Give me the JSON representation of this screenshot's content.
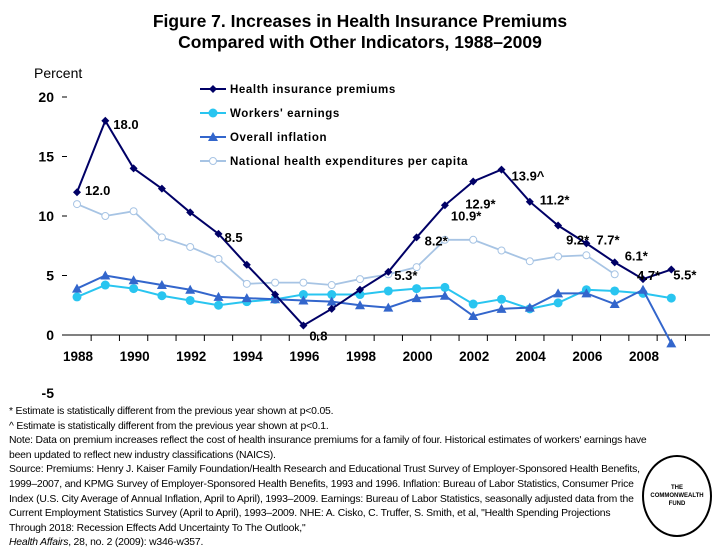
{
  "title_line1": "Figure 7. Increases in Health Insurance Premiums",
  "title_line2": "Compared with Other Indicators, 1988–2009",
  "chart_data": {
    "type": "line",
    "title": "Figure 7. Increases in Health Insurance Premiums Compared with Other Indicators, 1988–2009",
    "ylabel": "Percent",
    "xlabel": "",
    "ylim": [
      -5,
      20
    ],
    "yticks": [
      -5,
      0,
      5,
      10,
      15,
      20
    ],
    "xtick_labels": [
      "1988",
      "1990",
      "1992",
      "1994",
      "1996",
      "1998",
      "2000",
      "2002",
      "2004",
      "2006",
      "2008"
    ],
    "legend_position": "top-center",
    "grid": false,
    "x": [
      1988,
      1989,
      1990,
      1991,
      1992,
      1993,
      1994,
      1995,
      1996,
      1997,
      1998,
      1999,
      2000,
      2001,
      2002,
      2003,
      2004,
      2005,
      2006,
      2007,
      2008,
      2009
    ],
    "series": [
      {
        "name": "Health insurance premiums",
        "color": "#000066",
        "marker": "diamond",
        "values": [
          12.0,
          18.0,
          14.0,
          12.3,
          10.3,
          8.5,
          5.9,
          3.4,
          0.8,
          2.2,
          3.8,
          5.3,
          8.2,
          10.9,
          12.9,
          13.9,
          11.2,
          9.2,
          7.7,
          6.1,
          4.7,
          5.5
        ]
      },
      {
        "name": "Workers' earnings",
        "color": "#29c5f0",
        "marker": "circle",
        "values": [
          3.2,
          4.2,
          3.9,
          3.3,
          2.9,
          2.5,
          2.8,
          3.0,
          3.4,
          3.4,
          3.4,
          3.7,
          3.9,
          4.0,
          2.6,
          3.0,
          2.2,
          2.7,
          3.8,
          3.7,
          3.5,
          3.1
        ]
      },
      {
        "name": "Overall inflation",
        "color": "#3366cc",
        "marker": "triangle",
        "values": [
          3.9,
          5.0,
          4.6,
          4.2,
          3.8,
          3.2,
          3.1,
          3.0,
          2.9,
          2.8,
          2.5,
          2.3,
          3.1,
          3.3,
          1.6,
          2.2,
          2.3,
          3.5,
          3.5,
          2.6,
          3.8,
          -0.7
        ]
      },
      {
        "name": "National health expenditures per capita",
        "color": "#a7c4e4",
        "marker": "open-circle",
        "values": [
          11.0,
          10.0,
          10.4,
          8.2,
          7.4,
          6.4,
          4.3,
          4.4,
          4.4,
          4.2,
          4.7,
          5.1,
          5.7,
          8.0,
          8.0,
          7.1,
          6.2,
          6.6,
          6.7,
          5.1,
          null,
          null
        ]
      }
    ],
    "data_labels": [
      {
        "year": 1988,
        "text": "12.0"
      },
      {
        "year": 1989,
        "text": "18.0"
      },
      {
        "year": 1993,
        "text": "8.5"
      },
      {
        "year": 1996,
        "text": "0.8"
      },
      {
        "year": 1999,
        "text": "5.3*"
      },
      {
        "year": 2000,
        "text": "8.2*"
      },
      {
        "year": 2001,
        "text": "10.9*"
      },
      {
        "year": 2002,
        "text": "12.9*"
      },
      {
        "year": 2003,
        "text": "13.9^"
      },
      {
        "year": 2004,
        "text": "11.2*"
      },
      {
        "year": 2005,
        "text": "9.2*"
      },
      {
        "year": 2006,
        "text": "7.7*"
      },
      {
        "year": 2007,
        "text": "6.1*"
      },
      {
        "year": 2008,
        "text": "4.7*"
      },
      {
        "year": 2009,
        "text": "5.5*"
      }
    ]
  },
  "notes": {
    "n1": "* Estimate is statistically different from the previous year shown at p<0.05.",
    "n2": "^ Estimate is statistically different from the previous year shown at p<0.1.",
    "n3": "Note: Data on premium increases reflect the cost of health insurance premiums for a family of four. Historical estimates of workers' earnings have been updated to reflect new industry classifications (NAICS).",
    "n4": "Source: Premiums: Henry J. Kaiser Family Foundation/Health Research and Educational Trust Survey of Employer-Sponsored Health Benefits, 1999–2007, and KPMG Survey of Employer-Sponsored Health Benefits, 1993 and 1996. Inflation: Bureau of Labor Statistics, Consumer Price Index (U.S. City Average of Annual Inflation, April to April), 1993–2009. Earnings: Bureau of Labor Statistics, seasonally adjusted data from the Current Employment Statistics Survey (April to April), 1993–2009. NHE: A. Cisko, C. Truffer, S. Smith, et al, \"Health Spending Projections Through 2018: Recession Effects Add Uncertainty To The Outlook,\"",
    "n5_italic": "Health Affairs",
    "n5": ", 28, no. 2 (2009): w346-w357."
  },
  "logo": {
    "l1": "THE",
    "l2": "COMMONWEALTH",
    "l3": "FUND"
  }
}
